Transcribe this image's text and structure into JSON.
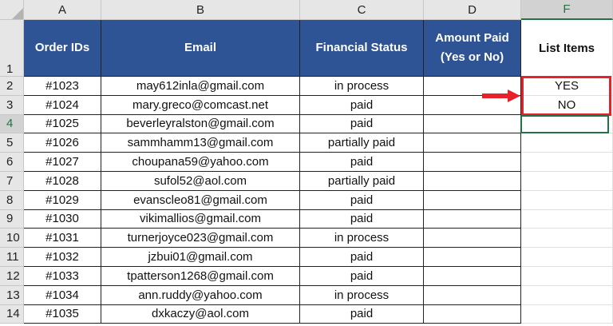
{
  "columns": [
    "A",
    "B",
    "C",
    "D",
    "F"
  ],
  "headers": {
    "a": "Order IDs",
    "b": "Email",
    "c": "Financial Status",
    "d1": "Amount Paid",
    "d2": "(Yes or No)",
    "f": "List Items"
  },
  "rows": [
    {
      "n": "2",
      "id": "#1023",
      "email": "may612inla@gmail.com",
      "status": "in process",
      "list": "YES"
    },
    {
      "n": "3",
      "id": "#1024",
      "email": "mary.greco@comcast.net",
      "status": "paid",
      "list": "NO"
    },
    {
      "n": "4",
      "id": "#1025",
      "email": "beverleyralston@gmail.com",
      "status": "paid",
      "list": ""
    },
    {
      "n": "5",
      "id": "#1026",
      "email": "sammhamm13@gmail.com",
      "status": "partially paid",
      "list": ""
    },
    {
      "n": "6",
      "id": "#1027",
      "email": "choupana59@yahoo.com",
      "status": "paid",
      "list": ""
    },
    {
      "n": "7",
      "id": "#1028",
      "email": "sufol52@aol.com",
      "status": "partially paid",
      "list": ""
    },
    {
      "n": "8",
      "id": "#1029",
      "email": "evanscleo81@gmail.com",
      "status": "paid",
      "list": ""
    },
    {
      "n": "9",
      "id": "#1030",
      "email": "vikimallios@gmail.com",
      "status": "paid",
      "list": ""
    },
    {
      "n": "10",
      "id": "#1031",
      "email": "turnerjoyce023@gmail.com",
      "status": "in process",
      "list": ""
    },
    {
      "n": "11",
      "id": "#1032",
      "email": "jzbui01@gmail.com",
      "status": "paid",
      "list": ""
    },
    {
      "n": "12",
      "id": "#1033",
      "email": "tpatterson1268@gmail.com",
      "status": "paid",
      "list": ""
    },
    {
      "n": "13",
      "id": "#1034",
      "email": "ann.ruddy@yahoo.com",
      "status": "in process",
      "list": ""
    },
    {
      "n": "14",
      "id": "#1035",
      "email": "dxkaczy@aol.com",
      "status": "paid",
      "list": ""
    }
  ],
  "row1_label": "1",
  "selected_cell": "F4",
  "colors": {
    "header_fill": "#2f5496",
    "highlight": "#e8202a",
    "selection": "#217346"
  }
}
